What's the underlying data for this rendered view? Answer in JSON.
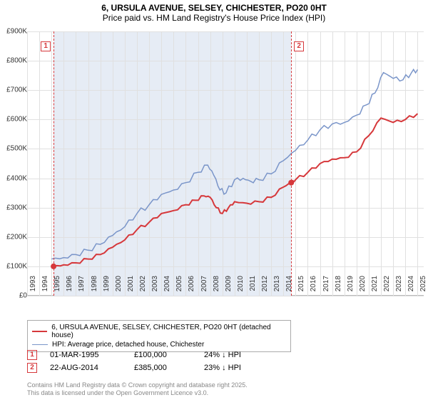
{
  "title_line1": "6, URSULA AVENUE, SELSEY, CHICHESTER, PO20 0HT",
  "title_line2": "Price paid vs. HM Land Registry's House Price Index (HPI)",
  "chart": {
    "type": "line",
    "x_start_year": 1993,
    "x_end_year": 2025,
    "ylim": [
      0,
      900000
    ],
    "ytick_step": 100000,
    "y_labels": [
      "£0",
      "£100K",
      "£200K",
      "£300K",
      "£400K",
      "£500K",
      "£600K",
      "£700K",
      "£800K",
      "£900K"
    ],
    "x_labels": [
      "1993",
      "1994",
      "1995",
      "1996",
      "1997",
      "1998",
      "1999",
      "2000",
      "2001",
      "2002",
      "2003",
      "2004",
      "2005",
      "2006",
      "2007",
      "2008",
      "2009",
      "2010",
      "2011",
      "2012",
      "2013",
      "2014",
      "2015",
      "2016",
      "2017",
      "2018",
      "2019",
      "2020",
      "2021",
      "2022",
      "2023",
      "2024",
      "2025"
    ],
    "background_color": "#ffffff",
    "grid_color": "#e0e0e0",
    "shade_color": "#e6ecf5",
    "shade_from_year": 1995.17,
    "shade_to_year": 2014.64,
    "series": {
      "red": {
        "color": "#d6383b",
        "label": "6, URSULA AVENUE, SELSEY, CHICHESTER, PO20 0HT (detached house)",
        "width": 2,
        "points": [
          [
            1995.17,
            100000
          ],
          [
            1996,
            105000
          ],
          [
            1997,
            112000
          ],
          [
            1998,
            125000
          ],
          [
            1999,
            140000
          ],
          [
            2000,
            165000
          ],
          [
            2001,
            190000
          ],
          [
            2002,
            225000
          ],
          [
            2003,
            250000
          ],
          [
            2004,
            280000
          ],
          [
            2005,
            290000
          ],
          [
            2006,
            310000
          ],
          [
            2006.8,
            325000
          ],
          [
            2007.5,
            340000
          ],
          [
            2008,
            335000
          ],
          [
            2008.5,
            300000
          ],
          [
            2009,
            280000
          ],
          [
            2009.5,
            300000
          ],
          [
            2010,
            320000
          ],
          [
            2011,
            315000
          ],
          [
            2012,
            320000
          ],
          [
            2013,
            335000
          ],
          [
            2014,
            370000
          ],
          [
            2014.64,
            385000
          ],
          [
            2015,
            395000
          ],
          [
            2016,
            420000
          ],
          [
            2017,
            450000
          ],
          [
            2018,
            465000
          ],
          [
            2019,
            470000
          ],
          [
            2020,
            490000
          ],
          [
            2021,
            545000
          ],
          [
            2022,
            605000
          ],
          [
            2023,
            590000
          ],
          [
            2024,
            600000
          ],
          [
            2025,
            620000
          ]
        ]
      },
      "blue": {
        "color": "#7a95c9",
        "label": "HPI: Average price, detached house, Chichester",
        "width": 1.5,
        "points": [
          [
            1995,
            125000
          ],
          [
            1996,
            130000
          ],
          [
            1997,
            140000
          ],
          [
            1998,
            155000
          ],
          [
            1999,
            175000
          ],
          [
            2000,
            205000
          ],
          [
            2001,
            235000
          ],
          [
            2002,
            280000
          ],
          [
            2003,
            310000
          ],
          [
            2004,
            345000
          ],
          [
            2005,
            360000
          ],
          [
            2006,
            385000
          ],
          [
            2007,
            420000
          ],
          [
            2007.8,
            445000
          ],
          [
            2008.3,
            410000
          ],
          [
            2008.8,
            360000
          ],
          [
            2009.3,
            350000
          ],
          [
            2010,
            395000
          ],
          [
            2010.7,
            400000
          ],
          [
            2011.3,
            390000
          ],
          [
            2012,
            395000
          ],
          [
            2013,
            415000
          ],
          [
            2014,
            460000
          ],
          [
            2015,
            495000
          ],
          [
            2016,
            530000
          ],
          [
            2017,
            565000
          ],
          [
            2018,
            585000
          ],
          [
            2019,
            590000
          ],
          [
            2020,
            615000
          ],
          [
            2020.8,
            650000
          ],
          [
            2021.5,
            690000
          ],
          [
            2022.2,
            760000
          ],
          [
            2023,
            740000
          ],
          [
            2023.8,
            735000
          ],
          [
            2024.5,
            760000
          ],
          [
            2025,
            770000
          ]
        ]
      }
    },
    "markers": [
      {
        "id": "1",
        "year": 1995.17,
        "value": 100000
      },
      {
        "id": "2",
        "year": 2014.64,
        "value": 385000
      }
    ]
  },
  "legend": {
    "items": [
      {
        "color": "#d6383b",
        "thickness": 2,
        "label": "6, URSULA AVENUE, SELSEY, CHICHESTER, PO20 0HT (detached house)"
      },
      {
        "color": "#7a95c9",
        "thickness": 1.5,
        "label": "HPI: Average price, detached house, Chichester"
      }
    ]
  },
  "sales": [
    {
      "id": "1",
      "date": "01-MAR-1995",
      "price": "£100,000",
      "delta": "24% ↓ HPI"
    },
    {
      "id": "2",
      "date": "22-AUG-2014",
      "price": "£385,000",
      "delta": "23% ↓ HPI"
    }
  ],
  "footer_line1": "Contains HM Land Registry data © Crown copyright and database right 2025.",
  "footer_line2": "This data is licensed under the Open Government Licence v3.0."
}
